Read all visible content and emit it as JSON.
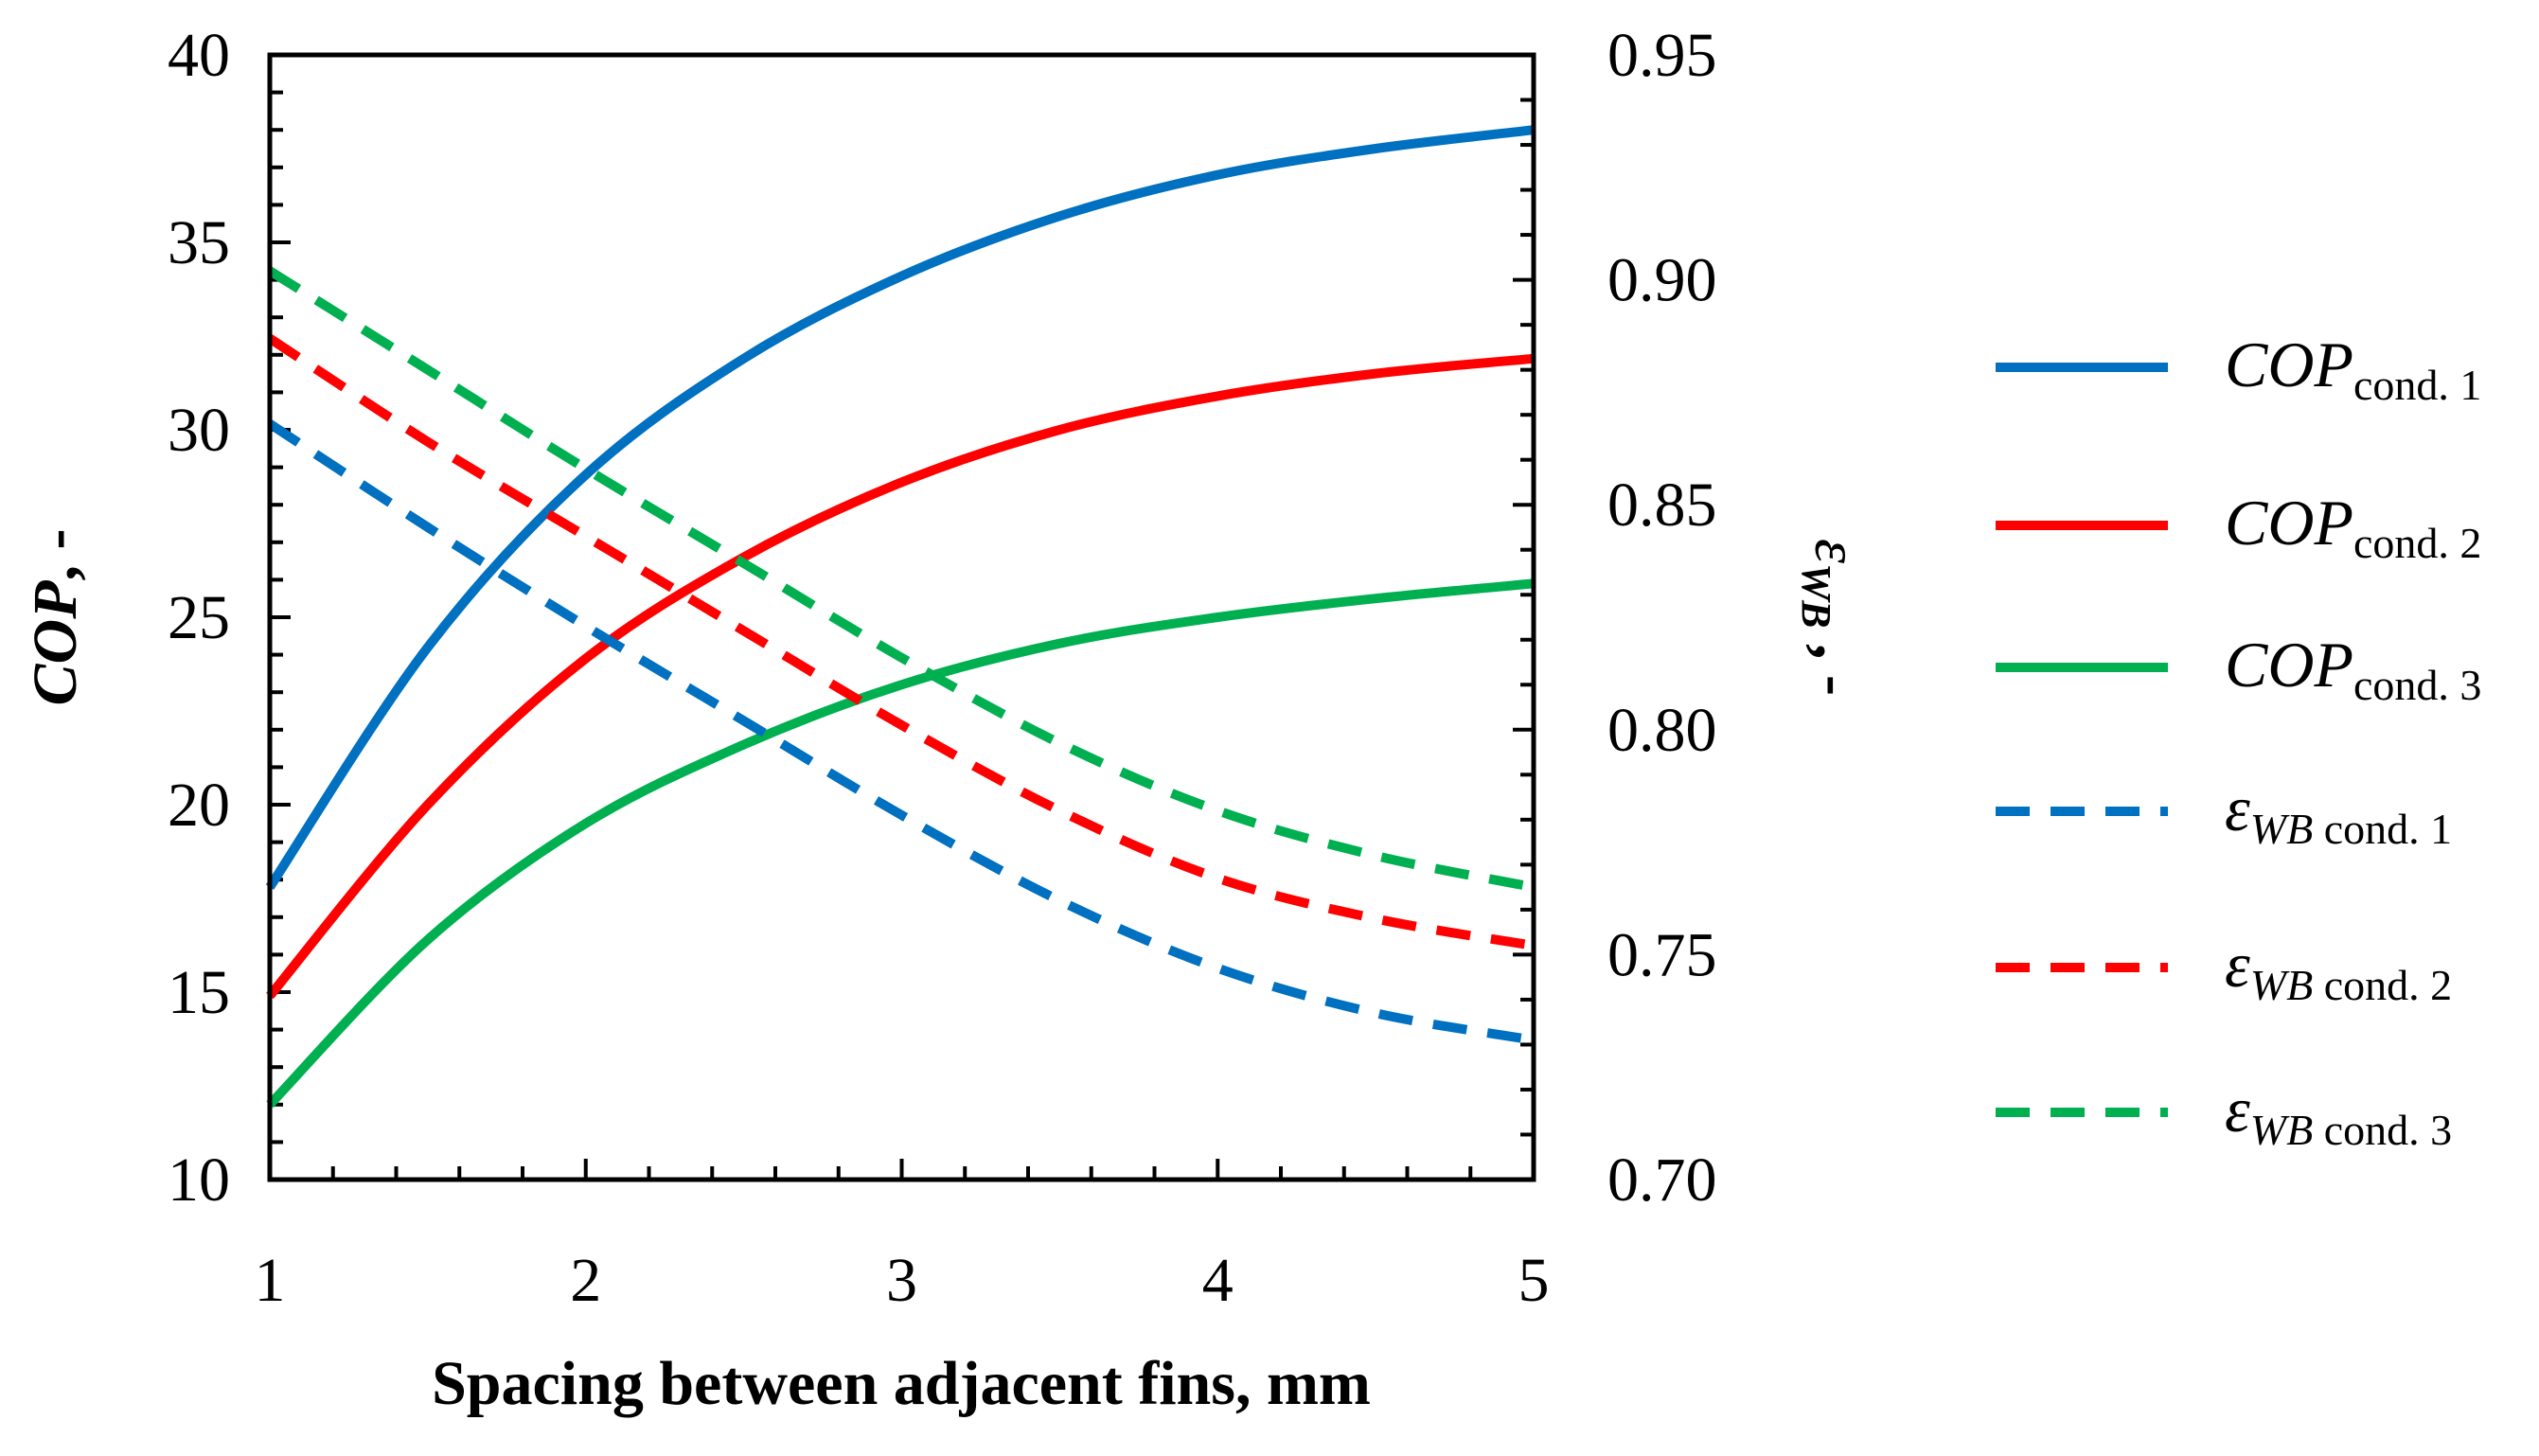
{
  "chart_data": {
    "type": "line",
    "xlabel": "Spacing between adjacent fins, mm",
    "ylabel_left_main": "COP",
    "ylabel_left_suffix": ", -",
    "ylabel_right_main": "ε",
    "ylabel_right_sub": "WB",
    "ylabel_right_suffix": " , -",
    "xlim": [
      1,
      5
    ],
    "ylim_left": [
      10,
      40
    ],
    "ylim_right": [
      0.7,
      0.95
    ],
    "x_ticks": [
      "1",
      "2",
      "3",
      "4",
      "5"
    ],
    "y_left_ticks": [
      "10",
      "15",
      "20",
      "25",
      "30",
      "35",
      "40"
    ],
    "y_right_ticks": [
      "0.70",
      "0.75",
      "0.80",
      "0.85",
      "0.90",
      "0.95"
    ],
    "x": [
      1,
      1.5,
      2,
      2.5,
      3,
      3.5,
      4,
      4.5,
      5
    ],
    "series": [
      {
        "name": "COP cond. 1",
        "main": "COP",
        "sub": "cond. 1",
        "axis": "left",
        "color": "#0070C0",
        "dash": false,
        "values": [
          17.8,
          24.2,
          28.8,
          31.9,
          34.1,
          35.7,
          36.8,
          37.5,
          38.0
        ]
      },
      {
        "name": "COP cond. 2",
        "main": "COP",
        "sub": "cond. 2",
        "axis": "left",
        "color": "#FF0000",
        "dash": false,
        "values": [
          14.9,
          20.0,
          23.9,
          26.6,
          28.6,
          30.0,
          30.9,
          31.5,
          31.9
        ]
      },
      {
        "name": "COP cond. 3",
        "main": "COP",
        "sub": "cond. 3",
        "axis": "left",
        "color": "#00B050",
        "dash": false,
        "values": [
          12.0,
          16.4,
          19.5,
          21.6,
          23.2,
          24.3,
          25.0,
          25.5,
          25.9
        ]
      },
      {
        "name": "εWB cond. 1",
        "main": "ε",
        "sub": "WB cond. 1",
        "axis": "right",
        "color": "#0070C0",
        "dash": true,
        "values": [
          0.868,
          0.845,
          0.823,
          0.802,
          0.781,
          0.762,
          0.747,
          0.737,
          0.731
        ]
      },
      {
        "name": "εWB cond. 2",
        "main": "ε",
        "sub": "WB cond. 2",
        "axis": "right",
        "color": "#FF0000",
        "dash": true,
        "values": [
          0.887,
          0.864,
          0.843,
          0.822,
          0.801,
          0.782,
          0.767,
          0.758,
          0.752
        ]
      },
      {
        "name": "εWB cond. 3",
        "main": "ε",
        "sub": "WB cond. 3",
        "axis": "right",
        "color": "#00B050",
        "dash": true,
        "values": [
          0.902,
          0.88,
          0.858,
          0.837,
          0.816,
          0.797,
          0.782,
          0.772,
          0.765
        ]
      }
    ]
  }
}
